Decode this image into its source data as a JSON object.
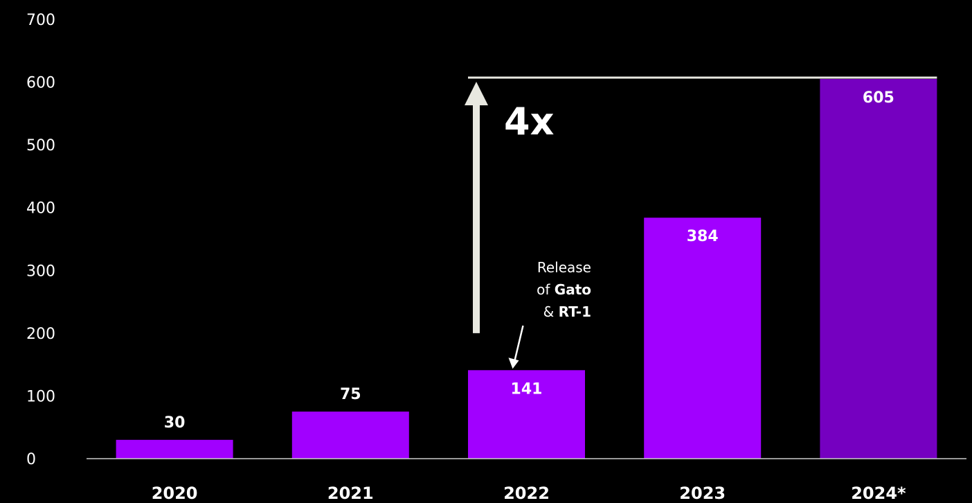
{
  "chart_data": {
    "type": "bar",
    "categories": [
      "2020",
      "2021",
      "2022",
      "2023",
      "2024*"
    ],
    "values": [
      30,
      75,
      141,
      384,
      605
    ],
    "data_labels": [
      "30",
      "75",
      "141",
      "384",
      "605"
    ],
    "ylim": [
      0,
      700
    ],
    "yticks": [
      0,
      100,
      200,
      300,
      400,
      500,
      600,
      700
    ],
    "ytick_labels": [
      "0",
      "100",
      "200",
      "300",
      "400",
      "500",
      "600",
      "700"
    ],
    "grid": false,
    "colors": {
      "bar": "#a100ff",
      "bar_highlight": "#7500c0",
      "axis": "#cccccc",
      "arrow": "#e8e8e0",
      "text": "#ffffff"
    },
    "annotations": {
      "growth_label": "4x",
      "growth_from_value": 141,
      "growth_to_value": 605,
      "note": {
        "line1": "Release",
        "line2_prefix": "of ",
        "line2_bold": "Gato",
        "line3_prefix": "& ",
        "line3_bold": "RT-1",
        "points_to": "2022"
      }
    }
  }
}
